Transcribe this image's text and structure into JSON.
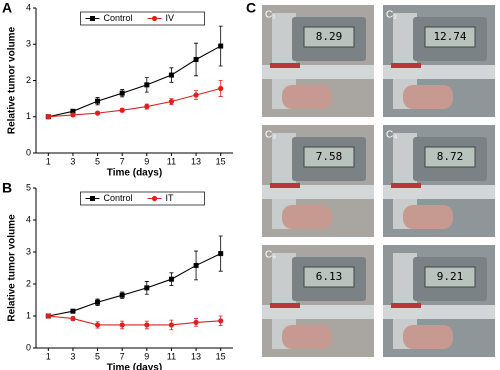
{
  "chart_data": [
    {
      "type": "line",
      "label": "A",
      "xlabel": "Time (days)",
      "ylabel": "Relative tumor volume",
      "x": [
        1,
        3,
        5,
        7,
        9,
        11,
        13,
        15
      ],
      "xlim": [
        0,
        16
      ],
      "xticks": [
        1,
        3,
        5,
        7,
        9,
        11,
        13,
        15
      ],
      "ylim": [
        0,
        4
      ],
      "yticks": [
        0,
        1,
        2,
        3,
        4
      ],
      "legend": "top",
      "grid": false,
      "series": [
        {
          "name": "Control",
          "color": "#000000",
          "marker": "square",
          "values": [
            1,
            1.15,
            1.43,
            1.65,
            1.88,
            2.15,
            2.58,
            2.95
          ],
          "errors": [
            0,
            0.05,
            0.1,
            0.1,
            0.2,
            0.2,
            0.45,
            0.55
          ]
        },
        {
          "name": "IV",
          "color": "#e02020",
          "marker": "circle",
          "values": [
            1,
            1.05,
            1.1,
            1.18,
            1.28,
            1.42,
            1.6,
            1.78
          ],
          "errors": [
            0,
            0.03,
            0.04,
            0.05,
            0.07,
            0.08,
            0.12,
            0.22
          ]
        }
      ]
    },
    {
      "type": "line",
      "label": "B",
      "xlabel": "Time (days)",
      "ylabel": "Relative tumor volume",
      "x": [
        1,
        3,
        5,
        7,
        9,
        11,
        13,
        15
      ],
      "xlim": [
        0,
        16
      ],
      "xticks": [
        1,
        3,
        5,
        7,
        9,
        11,
        13,
        15
      ],
      "ylim": [
        0,
        5
      ],
      "yticks": [
        0,
        1,
        2,
        3,
        4,
        5
      ],
      "legend": "top",
      "grid": false,
      "series": [
        {
          "name": "Control",
          "color": "#000000",
          "marker": "square",
          "values": [
            1,
            1.15,
            1.43,
            1.65,
            1.88,
            2.15,
            2.58,
            2.95
          ],
          "errors": [
            0,
            0.05,
            0.1,
            0.1,
            0.2,
            0.2,
            0.45,
            0.55
          ]
        },
        {
          "name": "IT",
          "color": "#e02020",
          "marker": "circle",
          "values": [
            1,
            0.92,
            0.72,
            0.72,
            0.72,
            0.72,
            0.8,
            0.85
          ],
          "errors": [
            0,
            0.06,
            0.1,
            0.12,
            0.12,
            0.15,
            0.12,
            0.15
          ]
        }
      ]
    }
  ],
  "photos": {
    "label": "C",
    "items": [
      {
        "label": "C₁",
        "reading": "8.29"
      },
      {
        "label": "C₂",
        "reading": "12.74"
      },
      {
        "label": "C₃",
        "reading": "7.58"
      },
      {
        "label": "C₄",
        "reading": "8.72"
      },
      {
        "label": "C₅",
        "reading": "6.13"
      },
      {
        "reading": "9.21"
      }
    ]
  }
}
